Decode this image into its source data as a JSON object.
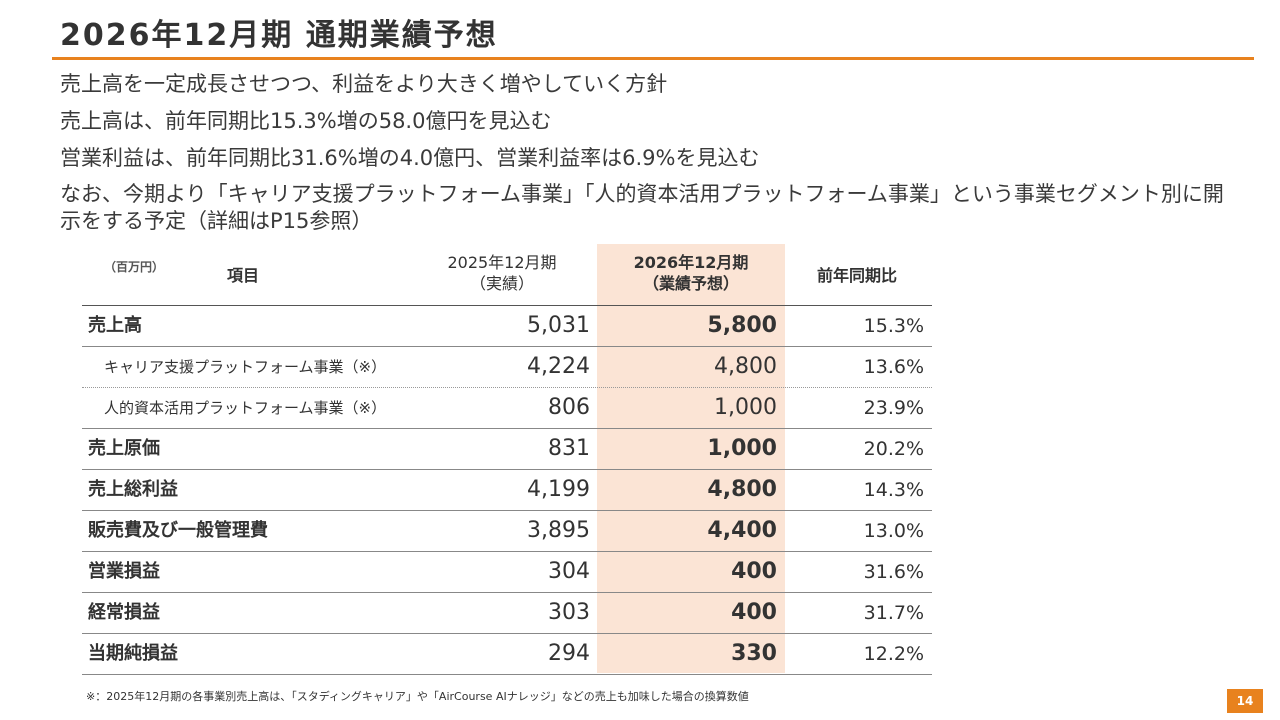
{
  "title": "2026年12月期 通期業績予想",
  "bullets": [
    "売上高を一定成長させつつ、利益をより大きく増やしていく方針",
    "売上高は、前年同期比15.3%増の58.0億円を見込む",
    "営業利益は、前年同期比31.6%増の4.0億円、営業利益率は6.9%を見込む",
    "なお、今期より「キャリア支援プラットフォーム事業」「人的資本活用プラットフォーム事業」という事業セグメント別に開示をする予定（詳細はP15参照）"
  ],
  "table": {
    "unit": "（百万円）",
    "headers": {
      "item": "項目",
      "actual_line1": "2025年12月期",
      "actual_line2": "（実績）",
      "forecast_line1": "2026年12月期",
      "forecast_line2": "（業績予想）",
      "yoy": "前年同期比"
    },
    "rows": [
      {
        "label": "売上高",
        "actual": "5,031",
        "forecast": "5,800",
        "yoy": "15.3%"
      },
      {
        "label": "キャリア支援プラットフォーム事業（※）",
        "actual": "4,224",
        "forecast": "4,800",
        "yoy": "13.6%"
      },
      {
        "label": "人的資本活用プラットフォーム事業（※）",
        "actual": "806",
        "forecast": "1,000",
        "yoy": "23.9%"
      },
      {
        "label": "売上原価",
        "actual": "831",
        "forecast": "1,000",
        "yoy": "20.2%"
      },
      {
        "label": "売上総利益",
        "actual": "4,199",
        "forecast": "4,800",
        "yoy": "14.3%"
      },
      {
        "label": "販売費及び一般管理費",
        "actual": "3,895",
        "forecast": "4,400",
        "yoy": "13.0%"
      },
      {
        "label": "営業損益",
        "actual": "304",
        "forecast": "400",
        "yoy": "31.6%"
      },
      {
        "label": "経常損益",
        "actual": "303",
        "forecast": "400",
        "yoy": "31.7%"
      },
      {
        "label": "当期純損益",
        "actual": "294",
        "forecast": "330",
        "yoy": "12.2%"
      }
    ]
  },
  "footnote": "※：2025年12月期の各事業別売上高は、「スタディングキャリア」や「AirCourse AIナレッジ」などの売上も加味した場合の換算数値",
  "page_number": "14",
  "colors": {
    "accent": "#e8821e",
    "highlight": "#fbe4d5"
  }
}
